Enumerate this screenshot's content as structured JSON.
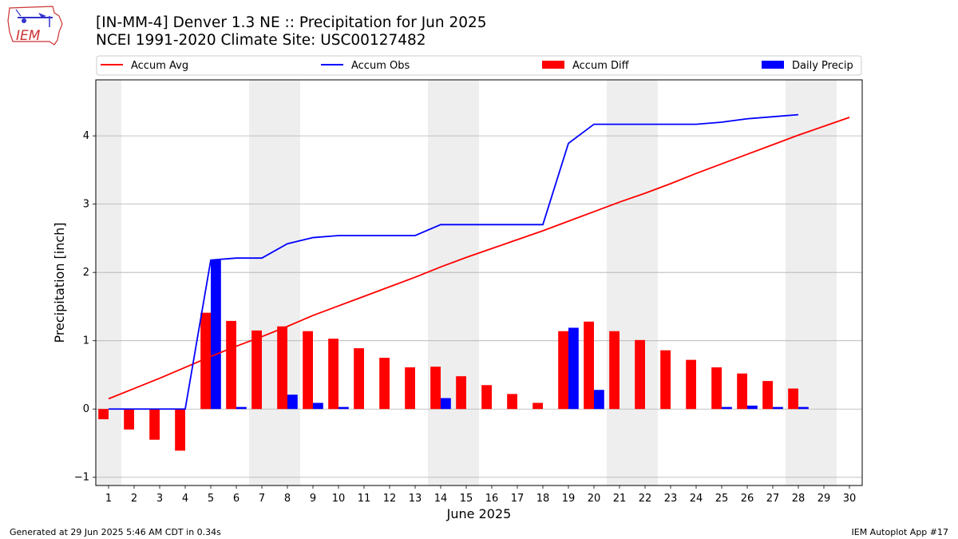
{
  "header": {
    "title_line1": "[IN-MM-4] Denver 1.3 NE :: Precipitation for Jun 2025",
    "title_line2": "NCEI 1991-2020 Climate Site: USC00127482"
  },
  "logo": {
    "text": "IEM",
    "icon": "iem-iowa-logo"
  },
  "footer": {
    "generated": "Generated at 29 Jun 2025 5:46 AM CDT in 0.34s",
    "app": "IEM Autoplot App #17"
  },
  "colors": {
    "accum_avg": "#ff0000",
    "accum_obs": "#0000ff",
    "accum_diff": "#ff0000",
    "daily_precip": "#0000ff",
    "weekend_shade": "#eeeeee",
    "grid": "#b0b0b0"
  },
  "chart_data": {
    "type": "bar",
    "xlabel": "June 2025",
    "ylabel": "Precipitation [inch]",
    "ylim": [
      -1.12,
      4.82
    ],
    "yticks": [
      -1,
      0,
      1,
      2,
      3,
      4
    ],
    "xlim": [
      0.5,
      30.5
    ],
    "days": [
      1,
      2,
      3,
      4,
      5,
      6,
      7,
      8,
      9,
      10,
      11,
      12,
      13,
      14,
      15,
      16,
      17,
      18,
      19,
      20,
      21,
      22,
      23,
      24,
      25,
      26,
      27,
      28,
      29,
      30
    ],
    "grid": "horizontal",
    "legend_placement": "top, above plot",
    "weekend_days": [
      1,
      7,
      8,
      14,
      15,
      21,
      22,
      28,
      29
    ],
    "legend": [
      "Accum Avg",
      "Accum Obs",
      "Accum Diff",
      "Daily Precip"
    ],
    "series": [
      {
        "name": "Accum Avg",
        "kind": "line",
        "x": [
          1,
          2,
          3,
          4,
          5,
          6,
          7,
          8,
          9,
          10,
          11,
          12,
          13,
          14,
          15,
          16,
          17,
          18,
          19,
          20,
          21,
          22,
          23,
          24,
          25,
          26,
          27,
          28,
          29,
          30
        ],
        "values": [
          0.15,
          0.3,
          0.45,
          0.61,
          0.77,
          0.92,
          1.06,
          1.21,
          1.37,
          1.51,
          1.65,
          1.79,
          1.93,
          2.08,
          2.22,
          2.35,
          2.48,
          2.61,
          2.75,
          2.89,
          3.03,
          3.16,
          3.3,
          3.45,
          3.59,
          3.73,
          3.87,
          4.01,
          4.14,
          4.27
        ]
      },
      {
        "name": "Accum Obs",
        "kind": "line",
        "x": [
          1,
          2,
          3,
          4,
          5,
          6,
          7,
          8,
          9,
          10,
          11,
          12,
          13,
          14,
          15,
          16,
          17,
          18,
          19,
          20,
          21,
          22,
          23,
          24,
          25,
          26,
          27,
          28
        ],
        "values": [
          0.0,
          0.0,
          0.0,
          0.0,
          2.18,
          2.21,
          2.21,
          2.42,
          2.51,
          2.54,
          2.54,
          2.54,
          2.54,
          2.7,
          2.7,
          2.7,
          2.7,
          2.7,
          3.89,
          4.17,
          4.17,
          4.17,
          4.17,
          4.17,
          4.2,
          4.25,
          4.28,
          4.31
        ]
      },
      {
        "name": "Accum Diff",
        "kind": "bar",
        "x": [
          1,
          2,
          3,
          4,
          5,
          6,
          7,
          8,
          9,
          10,
          11,
          12,
          13,
          14,
          15,
          16,
          17,
          18,
          19,
          20,
          21,
          22,
          23,
          24,
          25,
          26,
          27,
          28
        ],
        "values": [
          -0.15,
          -0.3,
          -0.45,
          -0.61,
          1.41,
          1.29,
          1.15,
          1.21,
          1.14,
          1.03,
          0.89,
          0.75,
          0.61,
          0.62,
          0.48,
          0.35,
          0.22,
          0.09,
          1.14,
          1.28,
          1.14,
          1.01,
          0.86,
          0.72,
          0.61,
          0.52,
          0.41,
          0.3
        ]
      },
      {
        "name": "Daily Precip",
        "kind": "bar",
        "x": [
          1,
          2,
          3,
          4,
          5,
          6,
          7,
          8,
          9,
          10,
          11,
          12,
          13,
          14,
          15,
          16,
          17,
          18,
          19,
          20,
          21,
          22,
          23,
          24,
          25,
          26,
          27,
          28
        ],
        "values": [
          0,
          0,
          0,
          0,
          2.18,
          0.03,
          0,
          0.21,
          0.09,
          0.03,
          0,
          0,
          0,
          0.16,
          0,
          0,
          0,
          0,
          1.19,
          0.28,
          0,
          0,
          0,
          0,
          0.03,
          0.05,
          0.03,
          0.03
        ]
      }
    ]
  }
}
